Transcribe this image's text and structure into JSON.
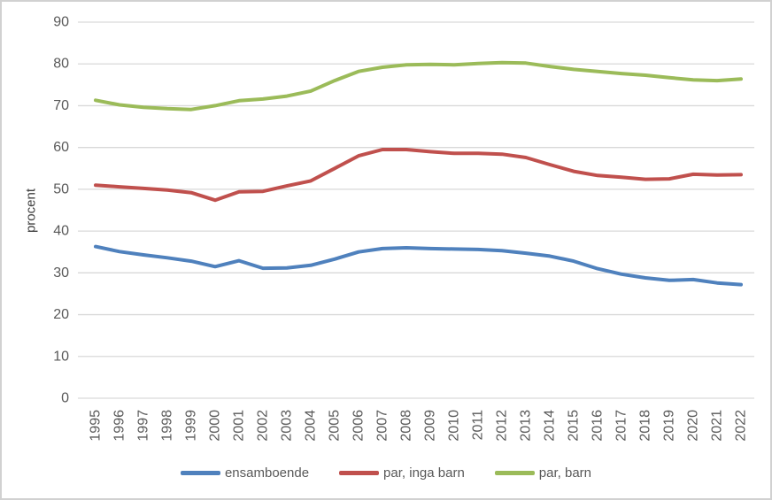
{
  "chart_data": {
    "type": "line",
    "title": "",
    "xlabel": "",
    "ylabel": "procent",
    "ylim": [
      0,
      90
    ],
    "ytick_step": 10,
    "grid": "horizontal",
    "legend_position": "bottom",
    "x": [
      "1995",
      "1996",
      "1997",
      "1998",
      "1999",
      "2000",
      "2001",
      "2002",
      "2003",
      "2004",
      "2005",
      "2006",
      "2007",
      "2008",
      "2009",
      "2010",
      "2011",
      "2012",
      "2013",
      "2014",
      "2015",
      "2016",
      "2017",
      "2018",
      "2019",
      "2020",
      "2021",
      "2022"
    ],
    "series": [
      {
        "name": "ensamboende",
        "color": "#4F81BD",
        "values": [
          36.3,
          35.1,
          34.3,
          33.6,
          32.8,
          31.5,
          32.9,
          31.1,
          31.2,
          31.8,
          33.3,
          35.0,
          35.8,
          36.0,
          35.8,
          35.7,
          35.6,
          35.3,
          34.7,
          34.0,
          32.8,
          31.0,
          29.7,
          28.8,
          28.2,
          28.4,
          27.6,
          27.2
        ]
      },
      {
        "name": "par, inga barn",
        "color": "#C0504D",
        "values": [
          51.0,
          50.6,
          50.2,
          49.8,
          49.2,
          47.4,
          49.4,
          49.5,
          50.8,
          52.0,
          55.0,
          58.0,
          59.5,
          59.5,
          59.0,
          58.6,
          58.6,
          58.4,
          57.6,
          55.9,
          54.3,
          53.3,
          52.9,
          52.4,
          52.5,
          53.6,
          53.4,
          53.5
        ]
      },
      {
        "name": "par, barn",
        "color": "#9BBB59",
        "values": [
          71.3,
          70.2,
          69.6,
          69.3,
          69.1,
          70.0,
          71.2,
          71.6,
          72.3,
          73.5,
          76.0,
          78.2,
          79.2,
          79.8,
          79.9,
          79.8,
          80.1,
          80.3,
          80.2,
          79.4,
          78.7,
          78.2,
          77.7,
          77.3,
          76.7,
          76.2,
          76.0,
          76.4
        ]
      }
    ]
  },
  "ui": {
    "gridline_color": "#d9d9d9",
    "tick_text_color": "#595959",
    "frame_border_color": "#d1d1d1"
  }
}
